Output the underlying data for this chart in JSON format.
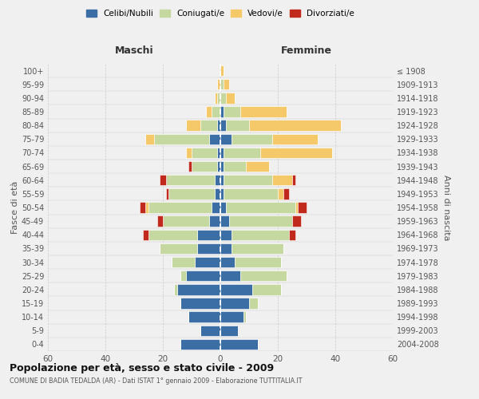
{
  "age_groups": [
    "0-4",
    "5-9",
    "10-14",
    "15-19",
    "20-24",
    "25-29",
    "30-34",
    "35-39",
    "40-44",
    "45-49",
    "50-54",
    "55-59",
    "60-64",
    "65-69",
    "70-74",
    "75-79",
    "80-84",
    "85-89",
    "90-94",
    "95-99",
    "100+"
  ],
  "birth_years": [
    "2004-2008",
    "1999-2003",
    "1994-1998",
    "1989-1993",
    "1984-1988",
    "1979-1983",
    "1974-1978",
    "1969-1973",
    "1964-1968",
    "1959-1963",
    "1954-1958",
    "1949-1953",
    "1944-1948",
    "1939-1943",
    "1934-1938",
    "1929-1933",
    "1924-1928",
    "1919-1923",
    "1914-1918",
    "1909-1913",
    "≤ 1908"
  ],
  "colors": {
    "celibe": "#3B6EA5",
    "coniugato": "#C5D8A0",
    "vedovo": "#F5C96A",
    "divorziato": "#C0291C"
  },
  "males": {
    "celibe": [
      14,
      7,
      11,
      14,
      15,
      12,
      9,
      8,
      8,
      4,
      3,
      2,
      2,
      1,
      1,
      4,
      1,
      0,
      0,
      0,
      0
    ],
    "coniugato": [
      0,
      0,
      0,
      0,
      1,
      2,
      8,
      13,
      17,
      16,
      22,
      16,
      17,
      9,
      9,
      19,
      6,
      3,
      1,
      0,
      0
    ],
    "vedovo": [
      0,
      0,
      0,
      0,
      0,
      0,
      0,
      0,
      0,
      0,
      1,
      0,
      0,
      0,
      2,
      3,
      5,
      2,
      1,
      1,
      0
    ],
    "divorziato": [
      0,
      0,
      0,
      0,
      0,
      0,
      0,
      0,
      2,
      2,
      2,
      1,
      2,
      1,
      0,
      0,
      0,
      0,
      0,
      0,
      0
    ]
  },
  "females": {
    "celibe": [
      13,
      6,
      8,
      10,
      11,
      7,
      5,
      4,
      4,
      3,
      2,
      1,
      1,
      1,
      1,
      4,
      2,
      1,
      0,
      0,
      0
    ],
    "coniugato": [
      0,
      0,
      1,
      3,
      10,
      16,
      16,
      18,
      20,
      22,
      24,
      19,
      17,
      8,
      13,
      14,
      8,
      6,
      2,
      1,
      0
    ],
    "vedovo": [
      0,
      0,
      0,
      0,
      0,
      0,
      0,
      0,
      0,
      0,
      1,
      2,
      7,
      8,
      25,
      16,
      32,
      16,
      3,
      2,
      1
    ],
    "divorziato": [
      0,
      0,
      0,
      0,
      0,
      0,
      0,
      0,
      2,
      3,
      3,
      2,
      1,
      0,
      0,
      0,
      0,
      0,
      0,
      0,
      0
    ]
  },
  "title": "Popolazione per età, sesso e stato civile - 2009",
  "subtitle": "COMUNE DI BADIA TEDALDA (AR) - Dati ISTAT 1° gennaio 2009 - Elaborazione TUTTITALIA.IT",
  "xlabel_left": "Maschi",
  "xlabel_right": "Femmine",
  "ylabel_left": "Fasce di età",
  "ylabel_right": "Anni di nascita",
  "xlim": 60,
  "legend_labels": [
    "Celibi/Nubili",
    "Coniugati/e",
    "Vedovi/e",
    "Divorziati/e"
  ],
  "bg_color": "#f0f0f0",
  "grid_color": "#cccccc"
}
